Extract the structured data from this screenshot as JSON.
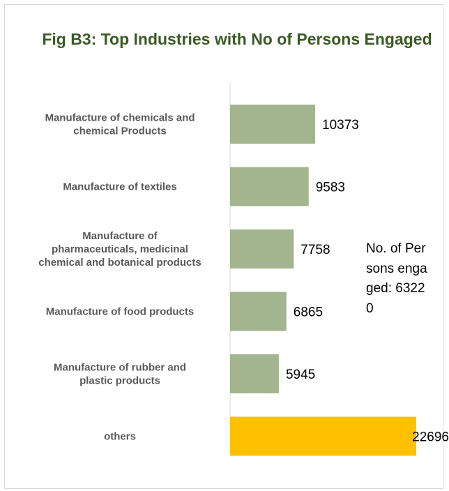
{
  "chart_data": {
    "type": "bar",
    "orientation": "horizontal",
    "title": "Fig B3: Top Industries with No of Persons Engaged",
    "categories": [
      [
        "Manufacture of chemicals and",
        "chemical Products"
      ],
      [
        "Manufacture of textiles"
      ],
      [
        "Manufacture of",
        "pharmaceuticals, medicinal",
        "chemical and botanical products"
      ],
      [
        "Manufacture of food products"
      ],
      [
        "Manufacture of rubber and",
        "plastic products"
      ],
      [
        "others"
      ]
    ],
    "values": [
      10373,
      9583,
      7758,
      6865,
      5945,
      22696
    ],
    "value_labels": [
      "10373",
      "9583",
      "7758",
      "6865",
      "5945",
      "22696"
    ],
    "bar_colors": [
      "#a2b58e",
      "#a2b58e",
      "#a2b58e",
      "#a2b58e",
      "#a2b58e",
      "#ffc000"
    ],
    "annotation": "No. of Persons engaged: 63220",
    "xlim": [
      0,
      22696
    ],
    "grid": false,
    "legend": "none"
  }
}
